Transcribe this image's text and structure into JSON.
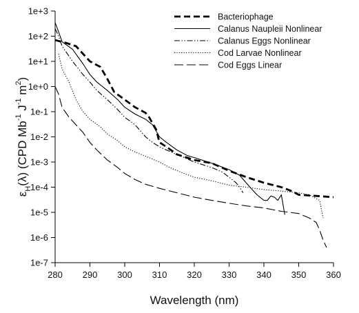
{
  "chart_data": {
    "type": "line",
    "xlabel": "Wavelength (nm)",
    "ylabel": {
      "parts": [
        "ε",
        "H",
        "(λ) (CPD Mb",
        "-1",
        " J",
        "-1",
        " m",
        "2",
        ")"
      ]
    },
    "xlim": [
      280,
      360
    ],
    "ylim": [
      1e-07,
      1000
    ],
    "yscale": "log",
    "x_ticks": [
      "280",
      "290",
      "300",
      "310",
      "320",
      "330",
      "340",
      "350",
      "360"
    ],
    "y_ticks": [
      "1e-7",
      "1e-6",
      "1e-5",
      "1e-4",
      "1e-3",
      "1e-2",
      "1e-1",
      "1e+0",
      "1e+1",
      "1e+2",
      "1e+3"
    ],
    "grid": false,
    "legend_position": "top-right",
    "series": [
      {
        "name": "Bacteriophage",
        "style": "dash-bold",
        "points": [
          [
            280,
            70
          ],
          [
            283,
            55
          ],
          [
            286,
            40
          ],
          [
            288,
            20
          ],
          [
            290,
            10
          ],
          [
            293,
            6
          ],
          [
            295,
            2
          ],
          [
            297,
            0.6
          ],
          [
            300,
            0.3
          ],
          [
            303,
            0.15
          ],
          [
            306,
            0.09
          ],
          [
            307,
            0.06
          ],
          [
            309,
            0.02
          ],
          [
            310,
            0.006
          ],
          [
            312,
            0.004
          ],
          [
            315,
            0.002
          ],
          [
            320,
            0.0012
          ],
          [
            325,
            0.0009
          ],
          [
            330,
            0.00045
          ],
          [
            335,
            0.00025
          ],
          [
            340,
            0.00015
          ],
          [
            345,
            0.0001
          ],
          [
            348,
            7e-05
          ],
          [
            350,
            5e-05
          ],
          [
            355,
            4.5e-05
          ],
          [
            360,
            4e-05
          ]
        ]
      },
      {
        "name": "Calanus Naupleii Nonlinear",
        "style": "solid",
        "points": [
          [
            280,
            350
          ],
          [
            281,
            150
          ],
          [
            282,
            60
          ],
          [
            285,
            30
          ],
          [
            288,
            8
          ],
          [
            290,
            3
          ],
          [
            292,
            1.5
          ],
          [
            295,
            0.7
          ],
          [
            298,
            0.3
          ],
          [
            300,
            0.15
          ],
          [
            303,
            0.08
          ],
          [
            306,
            0.05
          ],
          [
            308,
            0.03
          ],
          [
            310,
            0.01
          ],
          [
            312,
            0.006
          ],
          [
            315,
            0.003
          ],
          [
            318,
            0.0018
          ],
          [
            320,
            0.0015
          ],
          [
            325,
            0.0009
          ],
          [
            330,
            0.0005
          ],
          [
            333,
            0.0003
          ],
          [
            336,
            0.0001
          ],
          [
            338,
            5e-05
          ],
          [
            340,
            3e-05
          ],
          [
            341,
            3e-05
          ],
          [
            342,
            4.5e-05
          ],
          [
            343,
            4e-05
          ],
          [
            344,
            3e-05
          ],
          [
            345,
            5e-05
          ],
          [
            346,
            8e-06
          ]
        ]
      },
      {
        "name": "Calanus Eggs Nonlinear",
        "style": "dash-dot-dot",
        "points": [
          [
            280,
            200
          ],
          [
            281,
            100
          ],
          [
            282,
            40
          ],
          [
            285,
            10
          ],
          [
            288,
            3
          ],
          [
            290,
            1.5
          ],
          [
            292,
            0.7
          ],
          [
            295,
            0.3
          ],
          [
            298,
            0.12
          ],
          [
            300,
            0.06
          ],
          [
            303,
            0.03
          ],
          [
            306,
            0.01
          ],
          [
            308,
            0.006
          ],
          [
            310,
            0.004
          ],
          [
            312,
            0.003
          ],
          [
            315,
            0.002
          ],
          [
            320,
            0.001
          ],
          [
            325,
            0.0006
          ],
          [
            328,
            0.0004
          ],
          [
            330,
            0.00025
          ],
          [
            332,
            0.00015
          ],
          [
            333,
            0.0001
          ],
          [
            334,
            6e-05
          ]
        ]
      },
      {
        "name": "Cod Larvae Nonlinear",
        "style": "dotted",
        "points": [
          [
            281,
            20
          ],
          [
            282,
            5
          ],
          [
            284,
            1.5
          ],
          [
            286,
            0.3
          ],
          [
            288,
            0.1
          ],
          [
            290,
            0.05
          ],
          [
            293,
            0.025
          ],
          [
            295,
            0.013
          ],
          [
            298,
            0.007
          ],
          [
            300,
            0.004
          ],
          [
            303,
            0.0025
          ],
          [
            306,
            0.0017
          ],
          [
            310,
            0.001
          ],
          [
            313,
            0.0006
          ],
          [
            317,
            0.00035
          ],
          [
            320,
            0.00025
          ],
          [
            325,
            0.00018
          ],
          [
            330,
            0.00012
          ],
          [
            335,
            0.0001
          ],
          [
            340,
            8e-05
          ],
          [
            345,
            7e-05
          ],
          [
            350,
            6e-05
          ],
          [
            353,
            5e-05
          ],
          [
            356,
            3e-05
          ],
          [
            357,
            6e-06
          ]
        ]
      },
      {
        "name": "Cod Eggs Linear",
        "style": "long-dash",
        "points": [
          [
            280,
            1
          ],
          [
            281,
            0.5
          ],
          [
            282,
            0.15
          ],
          [
            284,
            0.06
          ],
          [
            286,
            0.03
          ],
          [
            288,
            0.015
          ],
          [
            290,
            0.006
          ],
          [
            292,
            0.003
          ],
          [
            295,
            0.0012
          ],
          [
            298,
            0.0006
          ],
          [
            300,
            0.00035
          ],
          [
            303,
            0.0002
          ],
          [
            306,
            0.00013
          ],
          [
            310,
            9e-05
          ],
          [
            315,
            6e-05
          ],
          [
            320,
            4e-05
          ],
          [
            325,
            3e-05
          ],
          [
            330,
            2.3e-05
          ],
          [
            335,
            1.8e-05
          ],
          [
            340,
            1.5e-05
          ],
          [
            345,
            1.1e-05
          ],
          [
            350,
            9e-06
          ],
          [
            353,
            6e-06
          ],
          [
            355,
            4e-06
          ],
          [
            356,
            2e-06
          ],
          [
            357,
            8e-07
          ],
          [
            358,
            4e-07
          ]
        ]
      }
    ]
  }
}
